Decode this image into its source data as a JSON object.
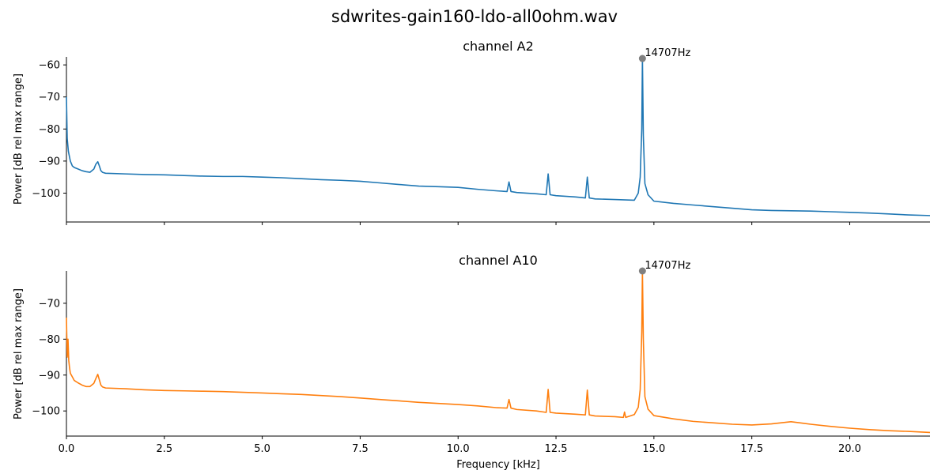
{
  "suptitle": "sdwrites-gain160-ldo-all0ohm.wav",
  "chart_data": [
    {
      "type": "line",
      "title": "channel A2",
      "xlabel": "",
      "ylabel": "Power [dB rel max range]",
      "xlim": [
        0,
        22.05
      ],
      "ylim": [
        -109,
        -57.5
      ],
      "xticks": [
        0,
        2.5,
        5,
        7.5,
        10,
        12.5,
        15,
        17.5,
        20
      ],
      "xtick_labels_shown": false,
      "yticks": [
        -100,
        -90,
        -80,
        -70,
        -60
      ],
      "ytick_labels": [
        "−100",
        "−90",
        "−80",
        "−70",
        "−60"
      ],
      "grid": false,
      "color": "#1f77b4",
      "series": [
        {
          "x": [
            0,
            0.02,
            0.05,
            0.1,
            0.15,
            0.2,
            0.3,
            0.4,
            0.5,
            0.6,
            0.7,
            0.75,
            0.8,
            0.84,
            0.88,
            0.92,
            1.0,
            1.5,
            2.0,
            2.5,
            3.0,
            3.5,
            4.0,
            4.5,
            5.0,
            5.5,
            6.0,
            6.5,
            7.0,
            7.5,
            8.0,
            8.5,
            9.0,
            9.5,
            10.0,
            10.5,
            11.0,
            11.25,
            11.3,
            11.35,
            11.5,
            12.0,
            12.25,
            12.3,
            12.35,
            12.5,
            13.0,
            13.25,
            13.3,
            13.35,
            13.5,
            14.0,
            14.5,
            14.6,
            14.65,
            14.69,
            14.707,
            14.73,
            14.77,
            14.85,
            15.0,
            15.5,
            16.0,
            16.5,
            17.0,
            17.5,
            18.0,
            18.5,
            19.0,
            19.5,
            20.0,
            20.5,
            21.0,
            21.5,
            22.05
          ],
          "y": [
            -70,
            -83,
            -87,
            -90,
            -91.5,
            -92,
            -92.5,
            -93,
            -93.3,
            -93.5,
            -92.5,
            -91,
            -90.2,
            -91.5,
            -93,
            -93.5,
            -93.8,
            -94,
            -94.2,
            -94.3,
            -94.5,
            -94.7,
            -94.8,
            -94.8,
            -95,
            -95.2,
            -95.5,
            -95.8,
            -96,
            -96.3,
            -96.8,
            -97.3,
            -97.8,
            -98,
            -98.2,
            -98.8,
            -99.3,
            -99.5,
            -96.5,
            -99.5,
            -99.8,
            -100.2,
            -100.5,
            -94,
            -100.5,
            -100.8,
            -101.2,
            -101.5,
            -95,
            -101.5,
            -101.8,
            -102,
            -102.2,
            -100,
            -95,
            -80,
            -58,
            -82,
            -97,
            -100.5,
            -102.5,
            -103.2,
            -103.7,
            -104.2,
            -104.7,
            -105.2,
            -105.4,
            -105.5,
            -105.6,
            -105.8,
            -106,
            -106.2,
            -106.5,
            -106.8,
            -107
          ]
        }
      ],
      "annotations": [
        {
          "x": 14.707,
          "y": -58,
          "text": "14707Hz"
        }
      ]
    },
    {
      "type": "line",
      "title": "channel A10",
      "xlabel": "Frequency [kHz]",
      "ylabel": "Power [dB rel max range]",
      "xlim": [
        0,
        22.05
      ],
      "ylim": [
        -107,
        -61
      ],
      "xticks": [
        0,
        2.5,
        5,
        7.5,
        10,
        12.5,
        15,
        17.5,
        20
      ],
      "xtick_labels": [
        "0.0",
        "2.5",
        "5.0",
        "7.5",
        "10.0",
        "12.5",
        "15.0",
        "17.5",
        "20.0"
      ],
      "yticks": [
        -100,
        -90,
        -80,
        -70
      ],
      "ytick_labels": [
        "−100",
        "−90",
        "−80",
        "−70"
      ],
      "grid": false,
      "color": "#ff7f0e",
      "series": [
        {
          "x": [
            0,
            0.02,
            0.04,
            0.06,
            0.08,
            0.1,
            0.15,
            0.2,
            0.3,
            0.4,
            0.5,
            0.6,
            0.7,
            0.75,
            0.8,
            0.84,
            0.88,
            0.92,
            1.0,
            1.5,
            2.0,
            2.5,
            3.0,
            3.5,
            4.0,
            4.5,
            5.0,
            5.5,
            6.0,
            6.5,
            7.0,
            7.5,
            8.0,
            8.5,
            9.0,
            9.5,
            10.0,
            10.5,
            11.0,
            11.25,
            11.3,
            11.35,
            11.5,
            12.0,
            12.25,
            12.3,
            12.35,
            12.5,
            13.0,
            13.25,
            13.3,
            13.35,
            13.5,
            14.0,
            14.22,
            14.25,
            14.28,
            14.5,
            14.6,
            14.65,
            14.69,
            14.707,
            14.73,
            14.77,
            14.85,
            15.0,
            15.5,
            16.0,
            16.5,
            17.0,
            17.5,
            18.0,
            18.5,
            19.0,
            19.5,
            20.0,
            20.5,
            21.0,
            21.5,
            22.05
          ],
          "y": [
            -74,
            -85,
            -80,
            -86,
            -88,
            -89.5,
            -90.5,
            -91.5,
            -92.2,
            -92.8,
            -93.2,
            -93.2,
            -92.3,
            -91,
            -89.8,
            -91.3,
            -92.8,
            -93.3,
            -93.6,
            -93.8,
            -94.1,
            -94.3,
            -94.4,
            -94.5,
            -94.6,
            -94.8,
            -95,
            -95.2,
            -95.4,
            -95.7,
            -96,
            -96.4,
            -96.8,
            -97.2,
            -97.6,
            -97.9,
            -98.2,
            -98.6,
            -99.1,
            -99.2,
            -96.8,
            -99.2,
            -99.6,
            -100,
            -100.4,
            -94,
            -100.4,
            -100.6,
            -100.9,
            -101.1,
            -94.2,
            -101.1,
            -101.4,
            -101.6,
            -101.8,
            -100.3,
            -101.8,
            -101,
            -99,
            -94,
            -78,
            -61,
            -80,
            -96,
            -99.5,
            -101.3,
            -102.2,
            -102.9,
            -103.3,
            -103.7,
            -103.9,
            -103.6,
            -103,
            -103.7,
            -104.3,
            -104.8,
            -105.2,
            -105.5,
            -105.7,
            -106
          ]
        }
      ],
      "annotations": [
        {
          "x": 14.707,
          "y": -61,
          "text": "14707Hz"
        }
      ]
    }
  ]
}
